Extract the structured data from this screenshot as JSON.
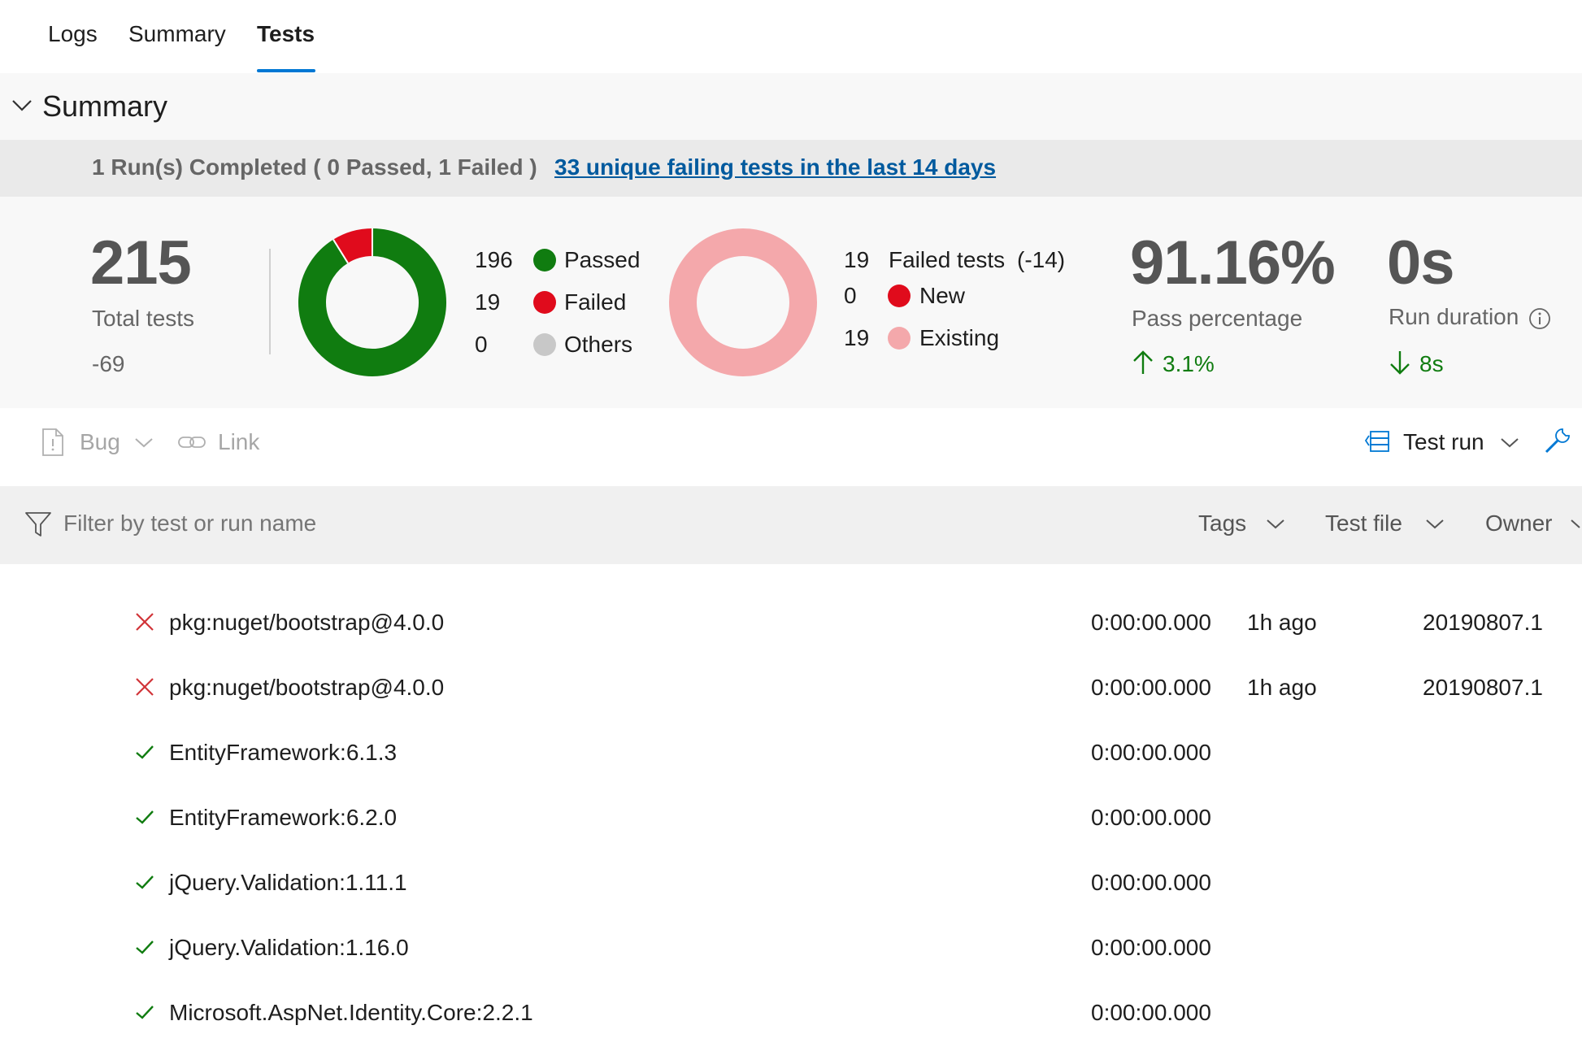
{
  "tabs": [
    {
      "label": "Logs",
      "active": false
    },
    {
      "label": "Summary",
      "active": false
    },
    {
      "label": "Tests",
      "active": true
    }
  ],
  "summary": {
    "title": "Summary",
    "banner_text": "1 Run(s) Completed ( 0 Passed, 1 Failed )",
    "banner_link": "33 unique failing tests in the last 14 days"
  },
  "stats": {
    "total": {
      "value": "215",
      "label": "Total tests",
      "delta": "-69"
    },
    "outcome_chart": {
      "passed": {
        "count": "196",
        "label": "Passed",
        "color": "#107c10"
      },
      "failed": {
        "count": "19",
        "label": "Failed",
        "color": "#e00b1c"
      },
      "others": {
        "count": "0",
        "label": "Others",
        "color": "#c8c8c8"
      }
    },
    "failed_chart": {
      "failed_count": "19",
      "failed_label": "Failed tests",
      "failed_delta": "(-14)",
      "new": {
        "count": "0",
        "label": "New",
        "color": "#e00b1c"
      },
      "existing": {
        "count": "19",
        "label": "Existing",
        "color": "#f4a8ab"
      }
    },
    "pass_percentage": {
      "value": "91.16%",
      "label": "Pass percentage",
      "delta": "3.1%"
    },
    "run_duration": {
      "value": "0s",
      "label": "Run duration",
      "delta": "8s"
    }
  },
  "toolbar": {
    "bug_label": "Bug",
    "link_label": "Link",
    "group_by_label": "Test run"
  },
  "filter": {
    "placeholder": "Filter by test or run name",
    "dropdowns": [
      "Tags",
      "Test file",
      "Owner"
    ]
  },
  "rows": [
    {
      "status": "failed",
      "name": "pkg:nuget/bootstrap@4.0.0",
      "duration": "0:00:00.000",
      "ago": "1h ago",
      "build": "20190807.1"
    },
    {
      "status": "failed",
      "name": "pkg:nuget/bootstrap@4.0.0",
      "duration": "0:00:00.000",
      "ago": "1h ago",
      "build": "20190807.1"
    },
    {
      "status": "passed",
      "name": "EntityFramework:6.1.3",
      "duration": "0:00:00.000",
      "ago": "",
      "build": ""
    },
    {
      "status": "passed",
      "name": "EntityFramework:6.2.0",
      "duration": "0:00:00.000",
      "ago": "",
      "build": ""
    },
    {
      "status": "passed",
      "name": "jQuery.Validation:1.11.1",
      "duration": "0:00:00.000",
      "ago": "",
      "build": ""
    },
    {
      "status": "passed",
      "name": "jQuery.Validation:1.16.0",
      "duration": "0:00:00.000",
      "ago": "",
      "build": ""
    },
    {
      "status": "passed",
      "name": "Microsoft.AspNet.Identity.Core:2.2.1",
      "duration": "0:00:00.000",
      "ago": "",
      "build": ""
    }
  ]
}
